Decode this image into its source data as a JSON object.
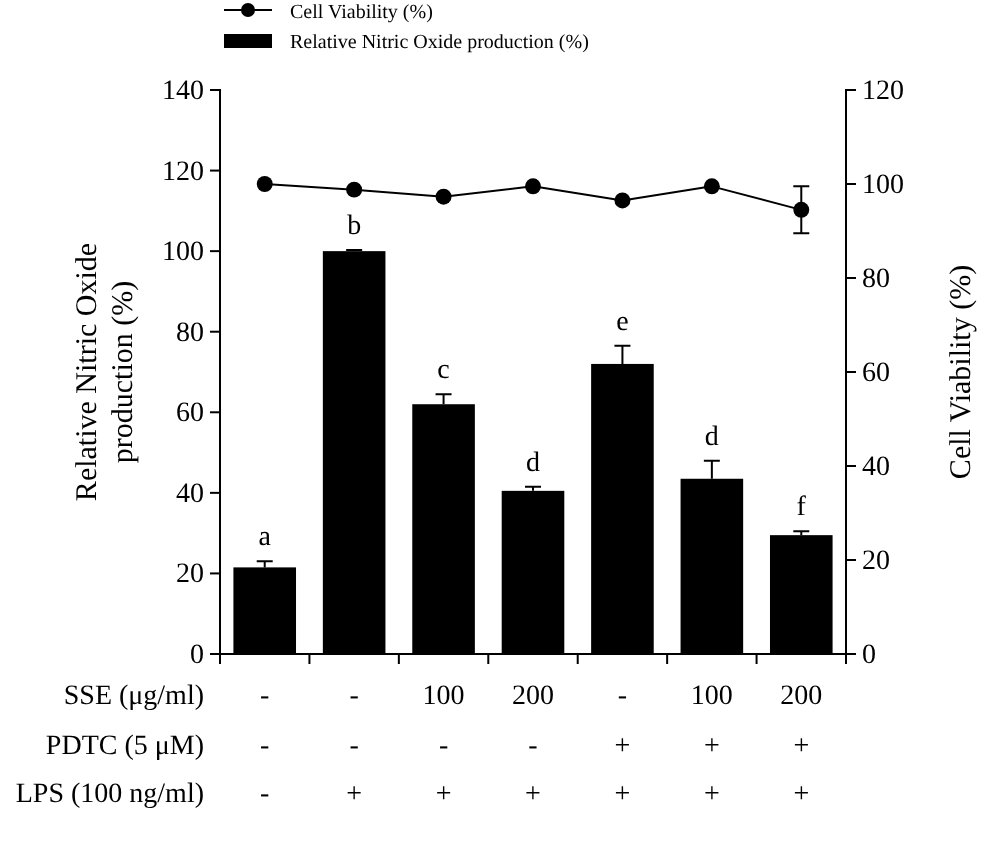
{
  "chart_data": {
    "type": "bar",
    "ylabel": "Relative Nitric Oxide production (%)",
    "y2label": "Cell Viability (%)",
    "categories": [
      "-\n-\n-",
      "-\n-\n+",
      "100\n-\n+",
      "200\n-\n+",
      "-\n+\n+",
      "100\n+\n+",
      "200\n+\n+"
    ],
    "annotations": [
      "SSE (μg/ml)",
      "PDTC (5 μM)",
      "LPS (100 ng/ml)"
    ],
    "series": [
      {
        "name": "Cell Viability  (%)",
        "type": "line",
        "axis": "y2",
        "color": "#000000",
        "values": [
          100,
          98.8,
          97.3,
          99.5,
          96.5,
          99.5,
          94.5
        ],
        "errors": [
          null,
          null,
          null,
          null,
          null,
          null,
          5
        ]
      },
      {
        "name": "Relative Nitric Oxide production (%)",
        "color": "#000000",
        "values": [
          21.5,
          100,
          62,
          40.5,
          72,
          43.5,
          29.5
        ],
        "errors": [
          1.5,
          0.3,
          2.5,
          1,
          4.5,
          4.5,
          1
        ],
        "value_labels": [
          "a",
          "b",
          "c",
          "d",
          "e",
          "d",
          "f"
        ]
      }
    ],
    "ylim": [
      0,
      140
    ],
    "yticks": [
      0,
      20,
      40,
      60,
      80,
      100,
      120,
      140
    ],
    "y2lim": [
      0,
      120
    ],
    "y2ticks": [
      0,
      20,
      40,
      60,
      80,
      100,
      120
    ],
    "marker": "circle",
    "line_style": "solid",
    "legend": "top",
    "grid": false
  }
}
